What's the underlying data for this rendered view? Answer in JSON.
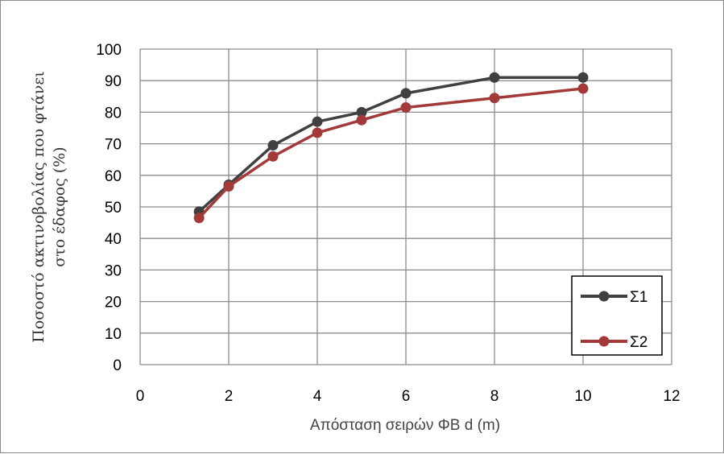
{
  "chart_data": {
    "type": "line",
    "title": "",
    "xlabel": "Απόσταση σειρών ΦΒ d (m)",
    "ylabel_lines": [
      "Ποσοστό ακτινοβολίας που φτάνει",
      "στο έδαφος (%)"
    ],
    "xlim": [
      0,
      12
    ],
    "ylim": [
      0,
      100
    ],
    "x_ticks": [
      "0",
      "2",
      "4",
      "6",
      "8",
      "10",
      "12"
    ],
    "y_ticks": [
      "0",
      "10",
      "20",
      "30",
      "40",
      "50",
      "60",
      "70",
      "80",
      "90",
      "100"
    ],
    "grid": true,
    "legend_position": "bottom-right",
    "series": [
      {
        "name": "Σ1",
        "color": "#404040",
        "x": [
          1.33,
          2,
          3,
          4,
          5,
          6,
          8,
          10
        ],
        "y": [
          48.5,
          57,
          69.5,
          77,
          80,
          86,
          91,
          91
        ]
      },
      {
        "name": "Σ2",
        "color": "#a33a3a",
        "x": [
          1.33,
          2,
          3,
          4,
          5,
          6,
          8,
          10
        ],
        "y": [
          46.5,
          56.5,
          66,
          73.5,
          77.5,
          81.5,
          84.5,
          87.5
        ]
      }
    ]
  }
}
